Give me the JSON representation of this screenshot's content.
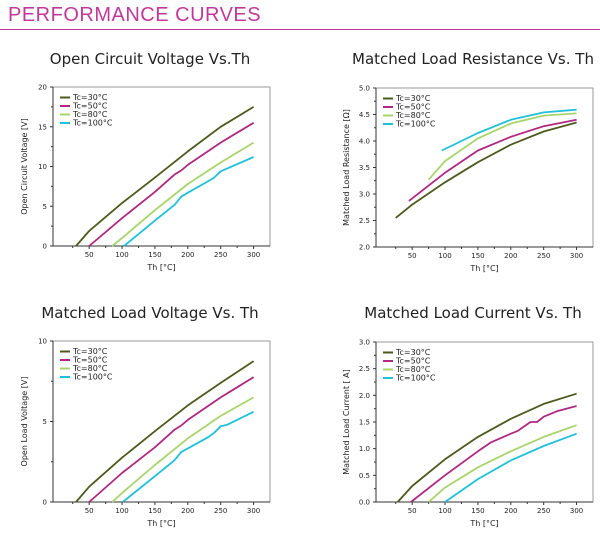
{
  "header": {
    "title": "PERFORMANCE CURVES",
    "accent": "#c0399a"
  },
  "series_colors": {
    "Tc=30°C": "#4d5a1e",
    "Tc=50°C": "#b0287f",
    "Tc=80°C": "#a8d46c",
    "Tc=100°C": "#20c0da"
  },
  "chart_data": [
    {
      "type": "line",
      "title": "Open Circuit Voltage Vs.Th",
      "xlabel": "Th [°C]",
      "ylabel": "Open Circuit Voltage [V]",
      "xlim": [
        -5,
        325
      ],
      "ylim": [
        0,
        20
      ],
      "xticks": [
        50,
        100,
        150,
        200,
        250,
        300
      ],
      "yticks": [
        0,
        5,
        10,
        15,
        20
      ],
      "ytick_labels": [
        "0",
        "5",
        "10",
        "15",
        "20"
      ],
      "legend": "top-left",
      "grid": false,
      "series": [
        {
          "name": "Tc=30°C",
          "x": [
            30,
            50,
            100,
            150,
            200,
            250,
            300
          ],
          "y": [
            0,
            1.9,
            5.4,
            8.6,
            11.9,
            15.0,
            17.5
          ]
        },
        {
          "name": "Tc=50°C",
          "x": [
            50,
            100,
            150,
            180,
            190,
            200,
            250,
            270,
            300
          ],
          "y": [
            0,
            3.5,
            6.8,
            9.0,
            9.5,
            10.2,
            13.0,
            14.0,
            15.5
          ]
        },
        {
          "name": "Tc=80°C",
          "x": [
            85,
            100,
            150,
            200,
            250,
            300
          ],
          "y": [
            0,
            1.0,
            4.5,
            7.8,
            10.5,
            13.0
          ]
        },
        {
          "name": "Tc=100°C",
          "x": [
            103,
            150,
            180,
            190,
            200,
            230,
            240,
            250,
            300
          ],
          "y": [
            0,
            3.2,
            5.2,
            6.2,
            6.7,
            8.1,
            8.6,
            9.4,
            11.2
          ]
        }
      ]
    },
    {
      "type": "line",
      "title": "Matched Load Resistance Vs. Th",
      "xlabel": "Th [°C]",
      "ylabel": "Matched Load Resistance [Ω]",
      "xlim": [
        -5,
        325
      ],
      "ylim": [
        2.0,
        5.0
      ],
      "xticks": [
        50,
        100,
        150,
        200,
        250,
        300
      ],
      "yticks": [
        2.0,
        2.5,
        3.0,
        3.5,
        4.0,
        4.5,
        5.0
      ],
      "ytick_labels": [
        "2.0",
        "2.5",
        "3.0",
        "3.5",
        "4.0",
        "4.5",
        "5.0"
      ],
      "legend": "top-left",
      "grid": false,
      "series": [
        {
          "name": "Tc=30°C",
          "x": [
            25,
            50,
            100,
            150,
            200,
            250,
            300
          ],
          "y": [
            2.55,
            2.8,
            3.22,
            3.6,
            3.93,
            4.18,
            4.35
          ]
        },
        {
          "name": "Tc=50°C",
          "x": [
            45,
            100,
            150,
            200,
            250,
            300
          ],
          "y": [
            2.87,
            3.4,
            3.82,
            4.08,
            4.28,
            4.4
          ]
        },
        {
          "name": "Tc=80°C",
          "x": [
            75,
            100,
            150,
            200,
            250,
            300
          ],
          "y": [
            3.27,
            3.62,
            4.05,
            4.33,
            4.48,
            4.52
          ]
        },
        {
          "name": "Tc=100°C",
          "x": [
            95,
            150,
            200,
            250,
            300
          ],
          "y": [
            3.82,
            4.15,
            4.4,
            4.54,
            4.59
          ]
        }
      ]
    },
    {
      "type": "line",
      "title": "Matched Load Voltage Vs. Th",
      "xlabel": "Th [°C]",
      "ylabel": "Open Load Voltage [V]",
      "xlim": [
        -5,
        325
      ],
      "ylim": [
        0,
        10
      ],
      "xticks": [
        50,
        100,
        150,
        200,
        250,
        300
      ],
      "yticks": [
        0,
        5,
        10
      ],
      "ytick_labels": [
        "0",
        "5",
        "10"
      ],
      "legend": "top-left",
      "grid": false,
      "series": [
        {
          "name": "Tc=30°C",
          "x": [
            30,
            50,
            100,
            150,
            200,
            250,
            300
          ],
          "y": [
            0,
            0.95,
            2.75,
            4.4,
            6.0,
            7.4,
            8.75
          ]
        },
        {
          "name": "Tc=50°C",
          "x": [
            50,
            100,
            150,
            180,
            190,
            200,
            250,
            270,
            300
          ],
          "y": [
            0,
            1.8,
            3.4,
            4.5,
            4.75,
            5.1,
            6.5,
            7.0,
            7.75
          ]
        },
        {
          "name": "Tc=80°C",
          "x": [
            85,
            100,
            150,
            200,
            250,
            300
          ],
          "y": [
            0,
            0.55,
            2.3,
            3.95,
            5.35,
            6.5
          ]
        },
        {
          "name": "Tc=100°C",
          "x": [
            101,
            150,
            180,
            190,
            230,
            240,
            250,
            260,
            300
          ],
          "y": [
            0,
            1.6,
            2.6,
            3.1,
            4.0,
            4.3,
            4.7,
            4.8,
            5.6
          ]
        }
      ]
    },
    {
      "type": "line",
      "title": "Matched Load Current Vs. Th",
      "xlabel": "Th [°C]",
      "ylabel": "Matched Load Current [ A]",
      "xlim": [
        -5,
        325
      ],
      "ylim": [
        0,
        3.0
      ],
      "xticks": [
        50,
        100,
        150,
        200,
        250,
        300
      ],
      "yticks": [
        0,
        0.5,
        1.0,
        1.5,
        2.0,
        2.5,
        3.0
      ],
      "ytick_labels": [
        "0.0",
        "0.5",
        "1.0",
        "1.5",
        "2.0",
        "2.5",
        "3.0"
      ],
      "legend": "top-left",
      "grid": false,
      "series": [
        {
          "name": "Tc=30°C",
          "x": [
            28,
            50,
            100,
            150,
            200,
            250,
            300
          ],
          "y": [
            0,
            0.3,
            0.8,
            1.22,
            1.56,
            1.84,
            2.03
          ]
        },
        {
          "name": "Tc=50°C",
          "x": [
            48,
            100,
            150,
            170,
            200,
            210,
            230,
            240,
            250,
            270,
            300
          ],
          "y": [
            0,
            0.5,
            0.95,
            1.12,
            1.28,
            1.33,
            1.5,
            1.5,
            1.6,
            1.7,
            1.8
          ]
        },
        {
          "name": "Tc=80°C",
          "x": [
            75,
            100,
            150,
            200,
            250,
            300
          ],
          "y": [
            0,
            0.27,
            0.65,
            0.95,
            1.22,
            1.44
          ]
        },
        {
          "name": "Tc=100°C",
          "x": [
            100,
            150,
            200,
            250,
            300
          ],
          "y": [
            0,
            0.43,
            0.78,
            1.05,
            1.28
          ]
        }
      ]
    }
  ]
}
